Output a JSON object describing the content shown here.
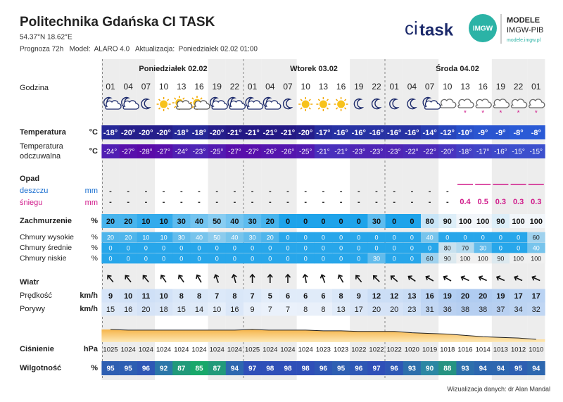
{
  "header": {
    "title": "Politechnika Gdańska CI TASK",
    "coords": "54.37°N  18.62°E",
    "info": "Prognoza 72h   Model:  ALARO 4.0   Aktualizacja:  Poniedziałek 02.02 01:00"
  },
  "logos": {
    "ci": "ci",
    "task": "task",
    "imgw": "IMGW",
    "modele": "MODELE",
    "imgw_pib": "IMGW-PIB",
    "url": "modele.imgw.pl"
  },
  "days": [
    "Poniedziałek 02.02",
    "Wtorek 03.02",
    "Środa 04.02"
  ],
  "hour_label": "Godzina",
  "hours": [
    "01",
    "04",
    "07",
    "10",
    "13",
    "16",
    "19",
    "22",
    "01",
    "04",
    "07",
    "10",
    "13",
    "16",
    "19",
    "22",
    "01",
    "04",
    "07",
    "10",
    "13",
    "16",
    "19",
    "22",
    "01"
  ],
  "temperature": {
    "label": "Temperatura",
    "unit": "°C",
    "cells": [
      "-18°",
      "-20°",
      "-20°",
      "-20°",
      "-18°",
      "-18°",
      "-20°",
      "-21°",
      "-21°",
      "-21°",
      "-21°",
      "-20°",
      "-17°",
      "-16°",
      "-16°",
      "-16°",
      "-16°",
      "-16°",
      "-14°",
      "-12°",
      "-10°",
      "-9°",
      "-9°",
      "-8°",
      "-8°"
    ]
  },
  "apparent": {
    "label": [
      "Temperatura",
      "odczuwalna"
    ],
    "unit": "°C",
    "cells": [
      "-24°",
      "-27°",
      "-28°",
      "-27°",
      "-24°",
      "-23°",
      "-25°",
      "-27°",
      "-27°",
      "-26°",
      "-26°",
      "-25°",
      "-21°",
      "-21°",
      "-23°",
      "-23°",
      "-23°",
      "-22°",
      "-22°",
      "-20°",
      "-18°",
      "-17°",
      "-16°",
      "-15°",
      "-15°"
    ]
  },
  "precip": {
    "label": "Opad",
    "rain": {
      "label": "deszczu",
      "unit": "mm",
      "cells": [
        "-",
        "-",
        "-",
        "-",
        "-",
        "-",
        "-",
        "-",
        "-",
        "-",
        "-",
        "-",
        "-",
        "-",
        "-",
        "-",
        "-",
        "-",
        "-",
        "-",
        null,
        null,
        null,
        null,
        null
      ]
    },
    "snow": {
      "label": "śniegu",
      "unit": "mm",
      "cells": [
        "-",
        "-",
        "-",
        "-",
        "-",
        "-",
        "-",
        "-",
        "-",
        "-",
        "-",
        "-",
        "-",
        "-",
        "-",
        "-",
        "-",
        "-",
        "-",
        "-",
        0.4,
        0.5,
        0.3,
        0.3,
        0.3
      ]
    }
  },
  "cloud_total": {
    "label": "Zachmurzenie",
    "unit": "%",
    "cells": [
      20,
      20,
      10,
      10,
      30,
      40,
      50,
      40,
      30,
      20,
      0,
      0,
      0,
      0,
      0,
      30,
      0,
      0,
      80,
      90,
      100,
      100,
      90,
      100,
      100
    ]
  },
  "cloud_high": {
    "label": "Chmury wysokie",
    "unit": "%",
    "cells": [
      20,
      20,
      10,
      10,
      30,
      40,
      50,
      40,
      30,
      20,
      0,
      0,
      0,
      0,
      0,
      0,
      0,
      0,
      40,
      0,
      0,
      0,
      0,
      0,
      60
    ]
  },
  "cloud_mid": {
    "label": "Chmury średnie",
    "unit": "%",
    "cells": [
      0,
      0,
      0,
      0,
      0,
      0,
      0,
      0,
      0,
      0,
      0,
      0,
      0,
      0,
      0,
      0,
      0,
      0,
      0,
      80,
      70,
      30,
      0,
      0,
      40
    ]
  },
  "cloud_low": {
    "label": "Chmury niskie",
    "unit": "%",
    "cells": [
      0,
      0,
      0,
      0,
      0,
      0,
      0,
      0,
      0,
      0,
      0,
      0,
      0,
      0,
      0,
      30,
      0,
      0,
      60,
      90,
      100,
      100,
      90,
      100,
      100
    ]
  },
  "wind": {
    "label": "Wiatr",
    "direction": [
      -40,
      -40,
      -40,
      -35,
      -35,
      -30,
      -20,
      -15,
      0,
      0,
      0,
      -10,
      -20,
      -30,
      -40,
      -45,
      -50,
      -55,
      -60,
      -60,
      -65,
      -65,
      -65,
      -65,
      -65
    ],
    "speed": {
      "label": "Prędkość",
      "unit": "km/h",
      "cells": [
        9,
        10,
        11,
        10,
        8,
        8,
        7,
        8,
        7,
        5,
        6,
        6,
        6,
        8,
        9,
        12,
        12,
        13,
        16,
        19,
        20,
        20,
        19,
        17,
        17
      ]
    },
    "gusts": {
      "label": "Porywy",
      "unit": "km/h",
      "cells": [
        15,
        16,
        20,
        18,
        15,
        14,
        10,
        16,
        9,
        7,
        7,
        8,
        8,
        13,
        17,
        20,
        20,
        23,
        31,
        36,
        38,
        38,
        37,
        34,
        32
      ]
    }
  },
  "pressure": {
    "label": "Ciśnienie",
    "unit": "hPa",
    "cells": [
      1025,
      1024,
      1024,
      1024,
      1024,
      1024,
      1024,
      1024,
      1025,
      1024,
      1024,
      1024,
      1023,
      1023,
      1022,
      1022,
      1022,
      1020,
      1019,
      1018,
      1016,
      1014,
      1013,
      1012,
      1010
    ]
  },
  "humidity": {
    "label": "Wilgotność",
    "unit": "%",
    "cells": [
      95,
      95,
      96,
      92,
      87,
      85,
      87,
      94,
      97,
      98,
      98,
      98,
      96,
      95,
      96,
      97,
      96,
      93,
      90,
      88,
      93,
      94,
      94,
      95,
      94
    ]
  },
  "footer": "Wizualizacja danych: dr Alan Mandal"
}
